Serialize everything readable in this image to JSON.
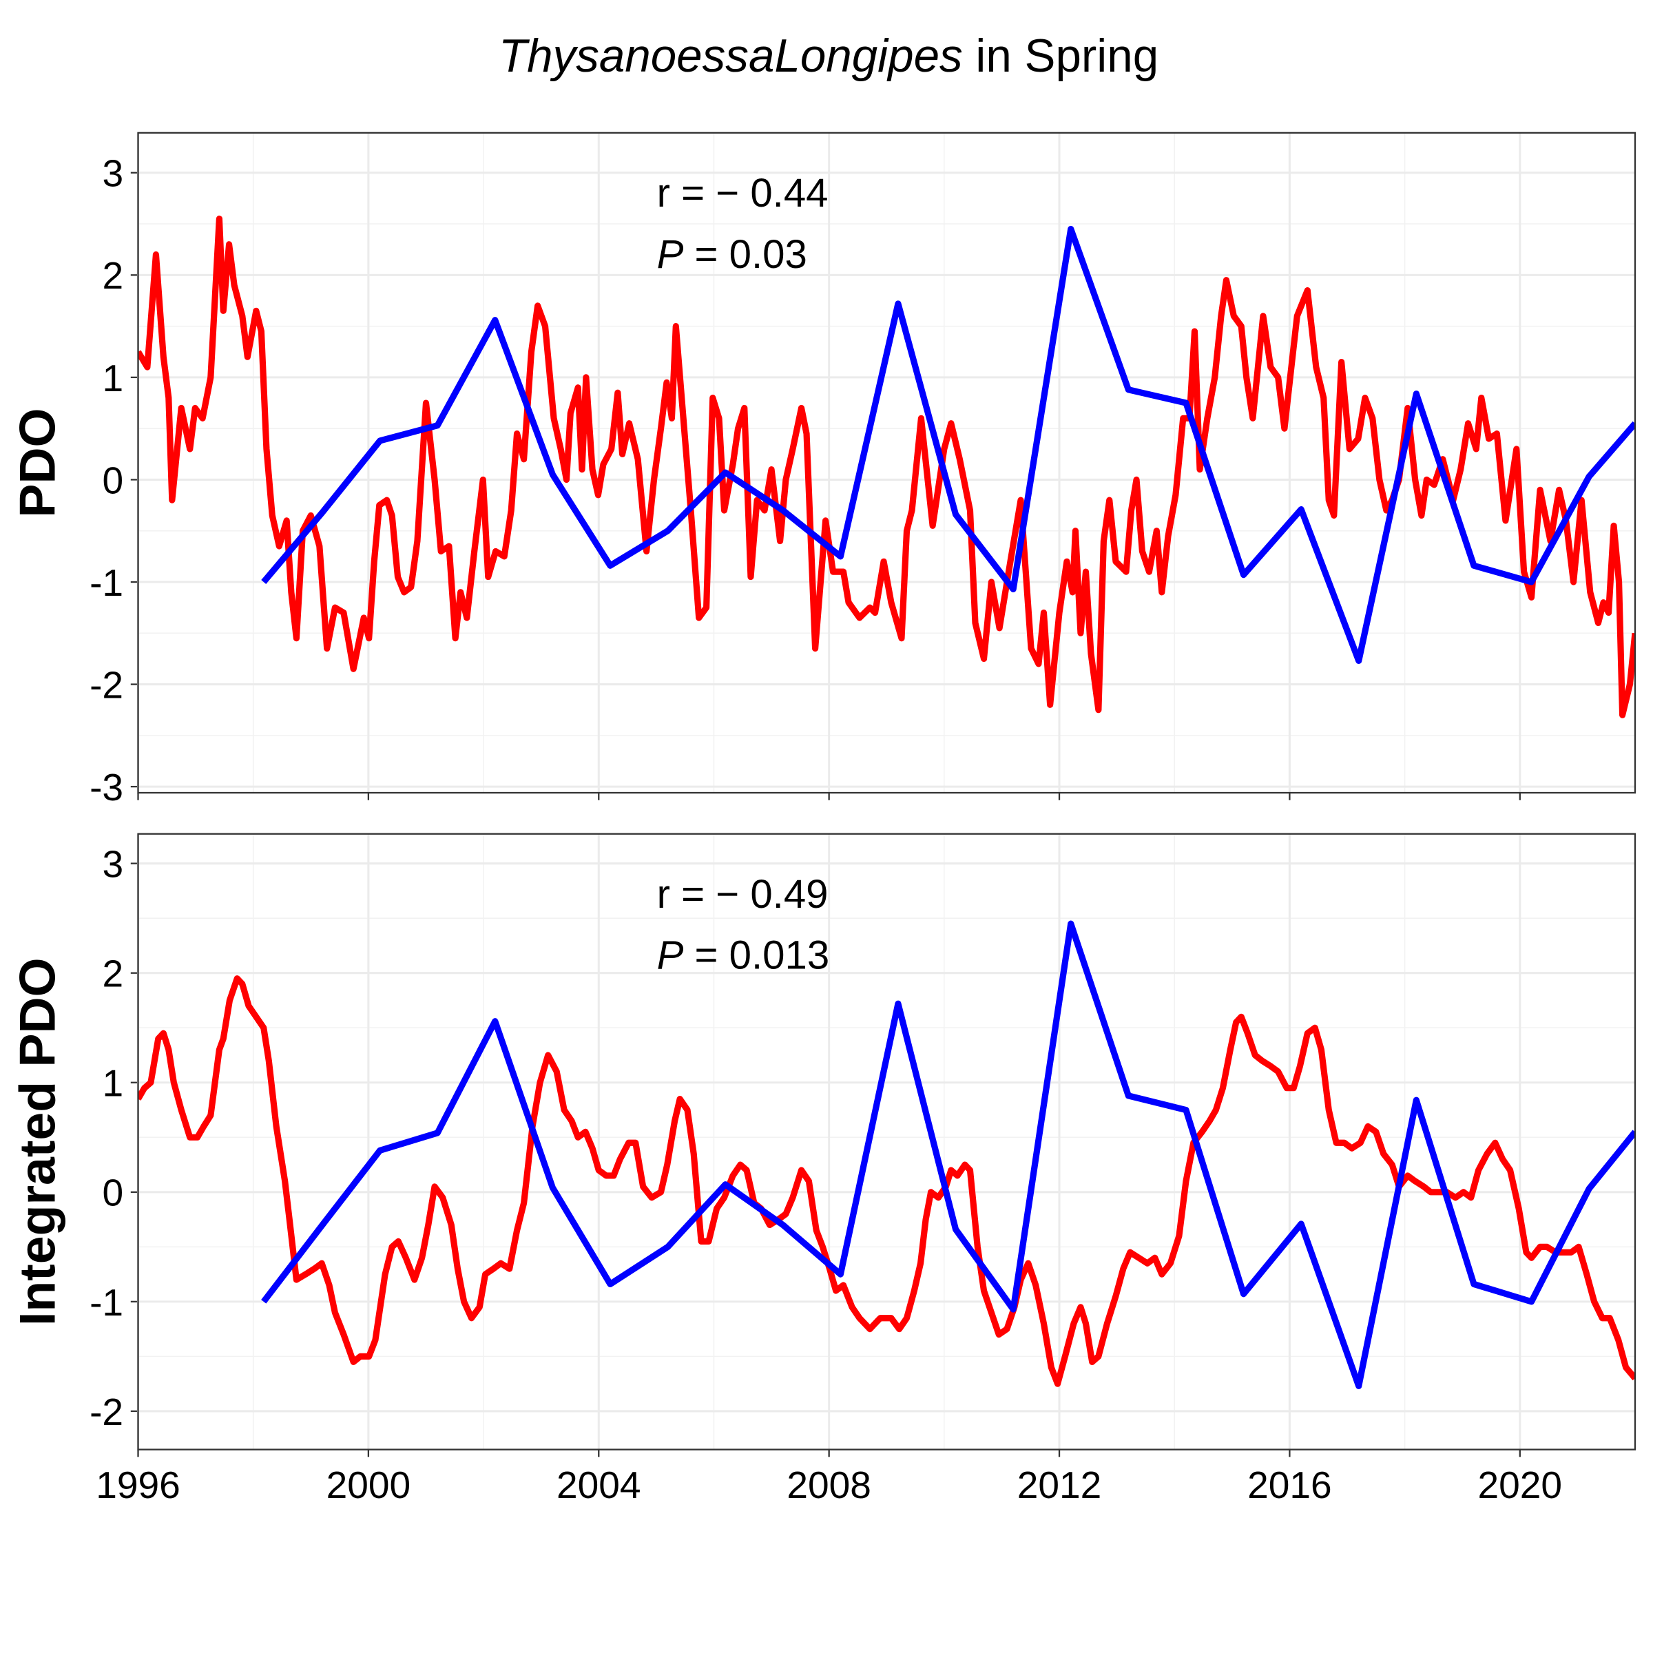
{
  "title": {
    "species": "ThysanoessaLongipes",
    "text": "in Spring"
  },
  "chart_data": [
    {
      "type": "line",
      "ylabel": "PDO",
      "annotation": {
        "r": "r = − 0.44",
        "p_symbol": "P",
        "p_text": "= 0.03"
      },
      "xlim": [
        1996,
        2022
      ],
      "ylim": [
        -3.06,
        3.39
      ],
      "xticks": [
        1996,
        2000,
        2004,
        2008,
        2012,
        2016,
        2020
      ],
      "yticks": [
        -3,
        -2,
        -1,
        0,
        1,
        2,
        3
      ],
      "grid": true,
      "series": [
        {
          "color": "#ff0000",
          "x": [
            1996.0,
            1996.16,
            1996.31,
            1996.44,
            1996.53,
            1996.59,
            1996.75,
            1996.9,
            1996.99,
            1997.12,
            1997.26,
            1997.41,
            1997.48,
            1997.58,
            1997.67,
            1997.81,
            1997.9,
            1998.05,
            1998.14,
            1998.23,
            1998.33,
            1998.45,
            1998.58,
            1998.66,
            1998.75,
            1998.86,
            1999.0,
            1999.15,
            1999.28,
            1999.42,
            1999.57,
            1999.74,
            1999.92,
            2000.01,
            2000.1,
            2000.19,
            2000.32,
            2000.41,
            2000.51,
            2000.62,
            2000.74,
            2000.85,
            2001.0,
            2001.15,
            2001.26,
            2001.4,
            2001.51,
            2001.6,
            2001.71,
            2001.84,
            2001.99,
            2002.08,
            2002.21,
            2002.36,
            2002.48,
            2002.58,
            2002.7,
            2002.83,
            2002.94,
            2003.07,
            2003.22,
            2003.34,
            2003.44,
            2003.51,
            2003.64,
            2003.71,
            2003.78,
            2003.89,
            2003.99,
            2004.08,
            2004.22,
            2004.33,
            2004.41,
            2004.53,
            2004.68,
            2004.83,
            2004.96,
            2005.08,
            2005.18,
            2005.27,
            2005.34,
            2005.47,
            2005.6,
            2005.74,
            2005.87,
            2005.98,
            2006.09,
            2006.18,
            2006.33,
            2006.42,
            2006.53,
            2006.64,
            2006.75,
            2006.88,
            2007.0,
            2007.15,
            2007.25,
            2007.37,
            2007.52,
            2007.61,
            2007.76,
            2007.94,
            2008.07,
            2008.25,
            2008.34,
            2008.53,
            2008.71,
            2008.8,
            2008.95,
            2009.08,
            2009.26,
            2009.35,
            2009.44,
            2009.6,
            2009.8,
            2010.0,
            2010.12,
            2010.27,
            2010.45,
            2010.54,
            2010.69,
            2010.82,
            2010.96,
            2011.15,
            2011.33,
            2011.51,
            2011.64,
            2011.73,
            2011.84,
            2012.0,
            2012.13,
            2012.23,
            2012.28,
            2012.37,
            2012.46,
            2012.55,
            2012.68,
            2012.77,
            2012.87,
            2012.98,
            2013.16,
            2013.25,
            2013.34,
            2013.44,
            2013.56,
            2013.69,
            2013.78,
            2013.89,
            2014.02,
            2014.15,
            2014.26,
            2014.35,
            2014.44,
            2014.57,
            2014.7,
            2014.81,
            2014.9,
            2015.03,
            2015.16,
            2015.25,
            2015.36,
            2015.54,
            2015.67,
            2015.8,
            2015.91,
            2016.13,
            2016.31,
            2016.46,
            2016.59,
            2016.68,
            2016.77,
            2016.9,
            2017.04,
            2017.19,
            2017.31,
            2017.44,
            2017.56,
            2017.68,
            2017.78,
            2017.9,
            2018.05,
            2018.18,
            2018.29,
            2018.38,
            2018.51,
            2018.66,
            2018.84,
            2018.97,
            2019.1,
            2019.24,
            2019.33,
            2019.46,
            2019.6,
            2019.75,
            2019.94,
            2020.07,
            2020.2,
            2020.35,
            2020.53,
            2020.68,
            2020.8,
            2020.93,
            2021.07,
            2021.22,
            2021.36,
            2021.45,
            2021.54,
            2021.63,
            2021.72,
            2021.78,
            2021.91,
            2022.0
          ],
          "values": [
            1.25,
            1.1,
            2.2,
            1.2,
            0.8,
            -0.2,
            0.7,
            0.3,
            0.7,
            0.6,
            1.0,
            2.55,
            1.65,
            2.3,
            1.9,
            1.6,
            1.2,
            1.65,
            1.45,
            0.3,
            -0.35,
            -0.65,
            -0.4,
            -1.1,
            -1.55,
            -0.5,
            -0.35,
            -0.65,
            -1.65,
            -1.25,
            -1.3,
            -1.85,
            -1.35,
            -1.55,
            -0.8,
            -0.25,
            -0.2,
            -0.35,
            -0.95,
            -1.1,
            -1.05,
            -0.6,
            0.75,
            0.0,
            -0.7,
            -0.65,
            -1.55,
            -1.1,
            -1.35,
            -0.7,
            0.0,
            -0.95,
            -0.7,
            -0.75,
            -0.3,
            0.45,
            0.2,
            1.25,
            1.7,
            1.5,
            0.6,
            0.3,
            0.0,
            0.65,
            0.9,
            0.1,
            1.0,
            0.1,
            -0.15,
            0.15,
            0.3,
            0.85,
            0.25,
            0.55,
            0.2,
            -0.7,
            0.0,
            0.5,
            0.95,
            0.6,
            1.5,
            0.6,
            -0.3,
            -1.35,
            -1.25,
            0.8,
            0.6,
            -0.3,
            0.15,
            0.5,
            0.7,
            -0.95,
            -0.2,
            -0.3,
            0.1,
            -0.6,
            0.0,
            0.3,
            0.7,
            0.45,
            -1.65,
            -0.4,
            -0.9,
            -0.9,
            -1.2,
            -1.35,
            -1.25,
            -1.3,
            -0.8,
            -1.2,
            -1.55,
            -0.5,
            -0.3,
            0.6,
            -0.45,
            0.3,
            0.55,
            0.2,
            -0.3,
            -1.4,
            -1.75,
            -1.0,
            -1.45,
            -0.8,
            -0.2,
            -1.65,
            -1.8,
            -1.3,
            -2.2,
            -1.3,
            -0.8,
            -1.1,
            -0.5,
            -1.5,
            -0.9,
            -1.7,
            -2.25,
            -0.6,
            -0.2,
            -0.8,
            -0.9,
            -0.3,
            0.0,
            -0.7,
            -0.9,
            -0.5,
            -1.1,
            -0.55,
            -0.15,
            0.6,
            0.6,
            1.45,
            0.1,
            0.6,
            1.0,
            1.6,
            1.95,
            1.6,
            1.5,
            1.0,
            0.6,
            1.6,
            1.1,
            1.0,
            0.5,
            1.6,
            1.85,
            1.1,
            0.8,
            -0.2,
            -0.35,
            1.15,
            0.3,
            0.4,
            0.8,
            0.6,
            0.0,
            -0.3,
            -0.2,
            0.0,
            0.7,
            0.0,
            -0.35,
            0.0,
            -0.05,
            0.2,
            -0.2,
            0.1,
            0.55,
            0.3,
            0.8,
            0.4,
            0.45,
            -0.4,
            0.3,
            -0.9,
            -1.15,
            -0.1,
            -0.6,
            -0.1,
            -0.4,
            -1.0,
            -0.2,
            -1.1,
            -1.4,
            -1.2,
            -1.3,
            -0.45,
            -1.0,
            -2.3,
            -2.0,
            -1.5
          ]
        },
        {
          "color": "#0000ff",
          "x": [
            1998.18,
            1999.2,
            2000.2,
            2001.2,
            2002.2,
            2003.2,
            2004.2,
            2005.2,
            2006.2,
            2007.2,
            2008.2,
            2009.2,
            2010.2,
            2011.2,
            2012.2,
            2013.2,
            2014.2,
            2015.2,
            2016.2,
            2017.2,
            2018.2,
            2019.2,
            2020.2,
            2021.2,
            2022.0
          ],
          "values": [
            -1.0,
            -0.32,
            0.38,
            0.53,
            1.56,
            0.05,
            -0.84,
            -0.5,
            0.07,
            -0.3,
            -0.75,
            1.72,
            -0.34,
            -1.07,
            2.45,
            0.88,
            0.75,
            -0.93,
            -0.29,
            -1.77,
            0.84,
            -0.84,
            -1.0,
            0.03,
            0.55
          ]
        }
      ]
    },
    {
      "type": "line",
      "ylabel": "Integrated PDO",
      "annotation": {
        "r": "r = − 0.49",
        "p_symbol": "P",
        "p_text": "= 0.013"
      },
      "xlim": [
        1996,
        2022
      ],
      "ylim": [
        -2.35,
        3.27
      ],
      "xticks": [
        1996,
        2000,
        2004,
        2008,
        2012,
        2016,
        2020
      ],
      "yticks": [
        -2,
        -1,
        0,
        1,
        2,
        3
      ],
      "grid": true,
      "series": [
        {
          "color": "#ff0000",
          "x": [
            1996.0,
            1996.11,
            1996.22,
            1996.35,
            1996.44,
            1996.53,
            1996.62,
            1996.75,
            1996.9,
            1997.03,
            1997.14,
            1997.26,
            1997.41,
            1997.48,
            1997.59,
            1997.72,
            1997.81,
            1997.92,
            1998.05,
            1998.18,
            1998.27,
            1998.4,
            1998.55,
            1998.64,
            1998.75,
            1998.91,
            1999.06,
            1999.19,
            1999.32,
            1999.42,
            1999.57,
            1999.74,
            1999.86,
            2000.01,
            2000.12,
            2000.29,
            2000.41,
            2000.52,
            2000.65,
            2000.8,
            2000.93,
            2001.04,
            2001.15,
            2001.29,
            2001.44,
            2001.55,
            2001.66,
            2001.79,
            2001.93,
            2002.03,
            2002.17,
            2002.3,
            2002.45,
            2002.58,
            2002.7,
            2002.85,
            2002.98,
            2003.12,
            2003.27,
            2003.4,
            2003.53,
            2003.64,
            2003.77,
            2003.89,
            2004.0,
            2004.13,
            2004.26,
            2004.37,
            2004.52,
            2004.64,
            2004.77,
            2004.92,
            2005.08,
            2005.19,
            2005.32,
            2005.41,
            2005.54,
            2005.65,
            2005.78,
            2005.91,
            2006.05,
            2006.18,
            2006.33,
            2006.46,
            2006.57,
            2006.7,
            2006.82,
            2006.97,
            2007.12,
            2007.25,
            2007.37,
            2007.52,
            2007.65,
            2007.78,
            2007.89,
            2008.01,
            2008.12,
            2008.25,
            2008.4,
            2008.53,
            2008.71,
            2008.89,
            2009.08,
            2009.22,
            2009.35,
            2009.48,
            2009.59,
            2009.68,
            2009.77,
            2009.9,
            2010.03,
            2010.12,
            2010.23,
            2010.36,
            2010.45,
            2010.58,
            2010.69,
            2010.82,
            2010.95,
            2011.09,
            2011.22,
            2011.33,
            2011.46,
            2011.59,
            2011.73,
            2011.86,
            2011.97,
            2012.1,
            2012.25,
            2012.37,
            2012.46,
            2012.57,
            2012.68,
            2012.83,
            2012.98,
            2013.11,
            2013.23,
            2013.38,
            2013.53,
            2013.66,
            2013.78,
            2013.93,
            2014.08,
            2014.2,
            2014.33,
            2014.48,
            2014.61,
            2014.72,
            2014.84,
            2014.97,
            2015.07,
            2015.16,
            2015.27,
            2015.4,
            2015.52,
            2015.67,
            2015.8,
            2015.95,
            2016.07,
            2016.18,
            2016.31,
            2016.44,
            2016.55,
            2016.68,
            2016.81,
            2016.95,
            2017.08,
            2017.23,
            2017.36,
            2017.5,
            2017.63,
            2017.78,
            2017.9,
            2018.05,
            2018.18,
            2018.33,
            2018.45,
            2018.6,
            2018.73,
            2018.88,
            2019.02,
            2019.15,
            2019.28,
            2019.43,
            2019.57,
            2019.7,
            2019.83,
            2019.98,
            2020.11,
            2020.2,
            2020.35,
            2020.47,
            2020.62,
            2020.75,
            2020.89,
            2021.02,
            2021.16,
            2021.29,
            2021.43,
            2021.56,
            2021.71,
            2021.84,
            2022.0
          ],
          "values": [
            0.85,
            0.95,
            1.0,
            1.4,
            1.45,
            1.3,
            1.0,
            0.75,
            0.5,
            0.5,
            0.6,
            0.7,
            1.3,
            1.4,
            1.75,
            1.95,
            1.9,
            1.7,
            1.6,
            1.5,
            1.2,
            0.6,
            0.1,
            -0.3,
            -0.8,
            -0.75,
            -0.7,
            -0.65,
            -0.85,
            -1.1,
            -1.3,
            -1.55,
            -1.5,
            -1.5,
            -1.35,
            -0.75,
            -0.5,
            -0.45,
            -0.6,
            -0.8,
            -0.6,
            -0.3,
            0.05,
            -0.05,
            -0.3,
            -0.7,
            -1.0,
            -1.15,
            -1.05,
            -0.75,
            -0.7,
            -0.65,
            -0.7,
            -0.35,
            -0.1,
            0.6,
            1.0,
            1.25,
            1.1,
            0.75,
            0.65,
            0.5,
            0.55,
            0.4,
            0.2,
            0.15,
            0.15,
            0.3,
            0.45,
            0.45,
            0.05,
            -0.05,
            0.0,
            0.25,
            0.65,
            0.85,
            0.75,
            0.35,
            -0.45,
            -0.45,
            -0.15,
            -0.05,
            0.15,
            0.25,
            0.2,
            -0.1,
            -0.15,
            -0.3,
            -0.25,
            -0.2,
            -0.05,
            0.2,
            0.1,
            -0.35,
            -0.5,
            -0.7,
            -0.9,
            -0.85,
            -1.05,
            -1.15,
            -1.25,
            -1.15,
            -1.15,
            -1.25,
            -1.15,
            -0.9,
            -0.65,
            -0.25,
            0.0,
            -0.05,
            0.05,
            0.2,
            0.15,
            0.25,
            0.2,
            -0.5,
            -0.9,
            -1.1,
            -1.3,
            -1.25,
            -1.05,
            -0.8,
            -0.65,
            -0.85,
            -1.2,
            -1.6,
            -1.75,
            -1.5,
            -1.2,
            -1.05,
            -1.2,
            -1.55,
            -1.5,
            -1.2,
            -0.95,
            -0.7,
            -0.55,
            -0.6,
            -0.65,
            -0.6,
            -0.75,
            -0.65,
            -0.4,
            0.1,
            0.45,
            0.55,
            0.65,
            0.75,
            0.95,
            1.3,
            1.55,
            1.6,
            1.45,
            1.25,
            1.2,
            1.15,
            1.1,
            0.95,
            0.95,
            1.15,
            1.45,
            1.5,
            1.3,
            0.75,
            0.45,
            0.45,
            0.4,
            0.45,
            0.6,
            0.55,
            0.35,
            0.25,
            0.05,
            0.15,
            0.1,
            0.05,
            0.0,
            0.0,
            0.0,
            -0.05,
            0.0,
            -0.05,
            0.2,
            0.35,
            0.45,
            0.3,
            0.2,
            -0.15,
            -0.55,
            -0.6,
            -0.5,
            -0.5,
            -0.55,
            -0.55,
            -0.55,
            -0.5,
            -0.75,
            -1.0,
            -1.15,
            -1.15,
            -1.35,
            -1.6,
            -1.7
          ]
        },
        {
          "color": "#0000ff",
          "x": [
            1998.18,
            1999.2,
            2000.2,
            2001.2,
            2002.2,
            2003.2,
            2004.2,
            2005.2,
            2006.2,
            2007.2,
            2008.2,
            2009.2,
            2010.2,
            2011.2,
            2012.2,
            2013.2,
            2014.2,
            2015.2,
            2016.2,
            2017.2,
            2018.2,
            2019.2,
            2020.2,
            2021.2,
            2022.0
          ],
          "values": [
            -1.0,
            -0.3,
            0.38,
            0.54,
            1.56,
            0.04,
            -0.84,
            -0.5,
            0.07,
            -0.3,
            -0.75,
            1.72,
            -0.34,
            -1.07,
            2.45,
            0.88,
            0.75,
            -0.93,
            -0.29,
            -1.77,
            0.84,
            -0.84,
            -1.0,
            0.03,
            0.55
          ]
        }
      ]
    }
  ]
}
